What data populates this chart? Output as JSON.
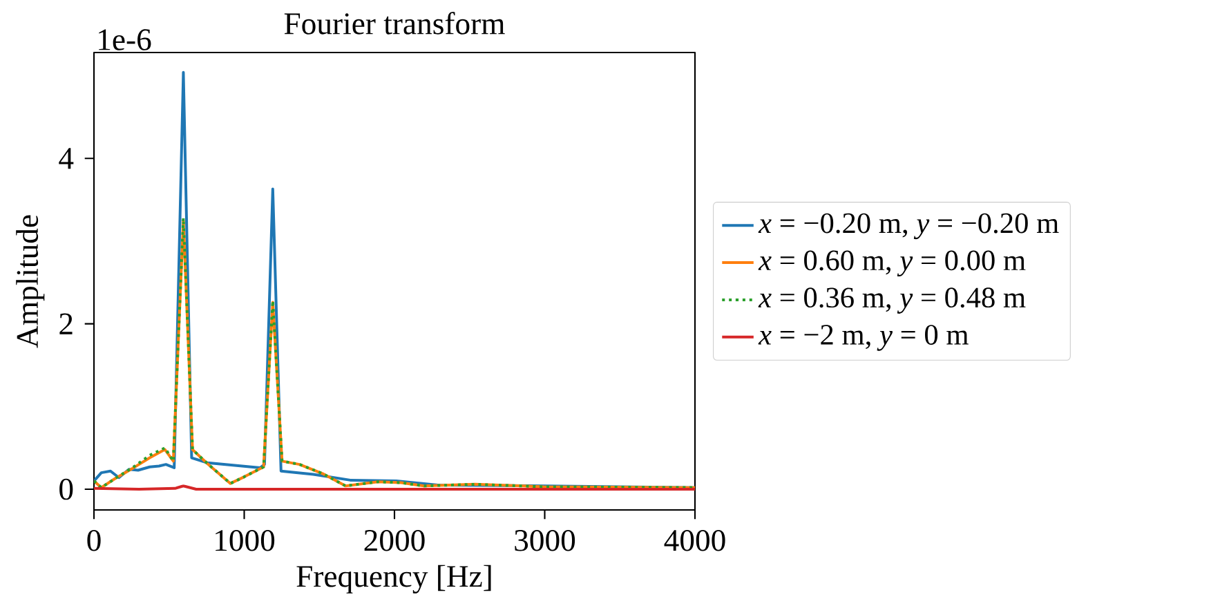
{
  "chart_data": {
    "type": "line",
    "title": "Fourier transform",
    "xlabel": "Frequency [Hz]",
    "ylabel": "Amplitude",
    "annotations": [
      "1e-6"
    ],
    "xlim": [
      0,
      4000
    ],
    "ylim": [
      -0.25,
      5.28
    ],
    "xticks": [
      0,
      1000,
      2000,
      3000,
      4000
    ],
    "yticks": [
      0,
      2,
      4
    ],
    "legend": "right",
    "marker": "none",
    "line_style": "solid",
    "series": [
      {
        "name": "*x* = −0.20 m, *y* = −0.20 m",
        "color": "#1f77b4",
        "x": [
          0,
          49,
          110,
          166,
          233,
          294,
          371,
          433,
          479,
          534,
          595,
          650,
          755,
          1107,
          1135,
          1190,
          1245,
          1460,
          1706,
          2012,
          2288,
          2994,
          4000
        ],
        "values": [
          0.1,
          0.2,
          0.22,
          0.14,
          0.24,
          0.23,
          0.27,
          0.28,
          0.3,
          0.26,
          5.04,
          0.38,
          0.32,
          0.26,
          0.3,
          3.63,
          0.22,
          0.18,
          0.11,
          0.1,
          0.05,
          0.04,
          0.02
        ]
      },
      {
        "name": "*x* = 0.60 m, *y* = 0.00 m",
        "color": "#ff7f0e",
        "x": [
          0,
          49,
          141,
          264,
          371,
          472,
          528,
          595,
          656,
          755,
          908,
          1000,
          1129,
          1190,
          1252,
          1368,
          1521,
          1675,
          1890,
          2043,
          2196,
          2534,
          2994,
          4000
        ],
        "values": [
          0.1,
          0.02,
          0.13,
          0.26,
          0.38,
          0.48,
          0.34,
          3.25,
          0.48,
          0.31,
          0.07,
          0.15,
          0.27,
          2.26,
          0.34,
          0.3,
          0.19,
          0.04,
          0.09,
          0.08,
          0.04,
          0.06,
          0.03,
          0.02
        ]
      },
      {
        "name": "*x* = 0.36 m, *y* = 0.48 m",
        "color": "#2ca02c",
        "line_style": "dotted",
        "x": [
          0,
          49,
          141,
          264,
          371,
          472,
          528,
          595,
          656,
          755,
          908,
          1000,
          1129,
          1190,
          1252,
          1368,
          1521,
          1675,
          1890,
          2043,
          2196,
          2534,
          2994,
          4000
        ],
        "values": [
          0.1,
          0.02,
          0.13,
          0.27,
          0.41,
          0.5,
          0.34,
          3.28,
          0.48,
          0.31,
          0.07,
          0.15,
          0.27,
          2.28,
          0.34,
          0.3,
          0.19,
          0.04,
          0.09,
          0.08,
          0.04,
          0.06,
          0.03,
          0.02
        ]
      },
      {
        "name": "*x* = −2 m, *y* = 0 m",
        "color": "#d62728",
        "x": [
          0,
          300,
          540,
          595,
          680,
          4000
        ],
        "values": [
          0.01,
          0.0,
          0.01,
          0.04,
          0.0,
          0.0
        ]
      }
    ]
  }
}
